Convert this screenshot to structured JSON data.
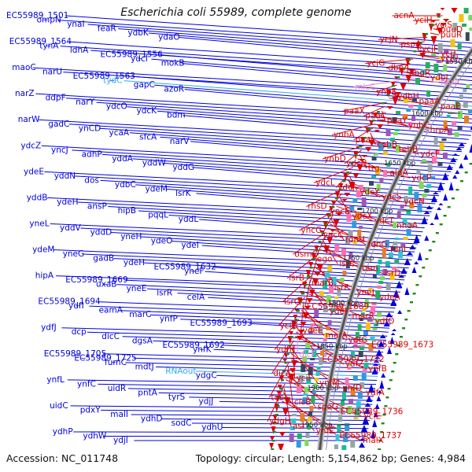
{
  "title": "Escherichia coli 55989, complete genome",
  "footer": {
    "accession": "Accession: NC_011748",
    "summary": "Topology: circular; Length: 5,154,862 bp; Genes: 4,984"
  },
  "colors": {
    "forward_strand": "#0000dd",
    "reverse_strand": "#dd0000",
    "rna_gene": "#33aaee",
    "pseudo_gene": "#ee88cc",
    "backbone": "#555555",
    "tick": "#1e8a1e"
  },
  "position_labels": [
    "1500 kbp",
    "1550 kbp",
    "1600 kbp",
    "1650 kbp",
    "1700 kbp",
    "1750 kbp",
    "1800 kbp",
    "1850 kbp",
    "1900 kbp",
    "1950 kbp"
  ],
  "left_genes": [
    {
      "label": "EC55989_1501",
      "kind": "cds"
    },
    {
      "label": "ompN",
      "kind": "cds"
    },
    {
      "label": "ynaI",
      "kind": "cds"
    },
    {
      "label": "feaR",
      "kind": "cds"
    },
    {
      "label": "ydbK",
      "kind": "cds"
    },
    {
      "label": "ydaO",
      "kind": "cds"
    },
    {
      "label": "EC55989_1564",
      "kind": "cds"
    },
    {
      "label": "tynA",
      "kind": "cds"
    },
    {
      "label": "ldhA",
      "kind": "cds"
    },
    {
      "label": "EC55989_1556",
      "kind": "cds"
    },
    {
      "label": "ydcI",
      "kind": "cds"
    },
    {
      "label": "mokB",
      "kind": "cds"
    },
    {
      "label": "maoC",
      "kind": "cds"
    },
    {
      "label": "narU",
      "kind": "cds"
    },
    {
      "label": "EC55989_1563",
      "kind": "cds"
    },
    {
      "label": "tydC",
      "kind": "rna"
    },
    {
      "label": "gapC",
      "kind": "cds"
    },
    {
      "label": "azoR",
      "kind": "cds"
    },
    {
      "label": "narZ",
      "kind": "cds"
    },
    {
      "label": "ddpF",
      "kind": "cds"
    },
    {
      "label": "narY",
      "kind": "cds"
    },
    {
      "label": "ydcO",
      "kind": "cds"
    },
    {
      "label": "ydcK",
      "kind": "cds"
    },
    {
      "label": "bdm",
      "kind": "cds"
    },
    {
      "label": "narW",
      "kind": "cds"
    },
    {
      "label": "gadC",
      "kind": "cds"
    },
    {
      "label": "ynCD",
      "kind": "cds"
    },
    {
      "label": "ycaA",
      "kind": "cds"
    },
    {
      "label": "sfcA",
      "kind": "cds"
    },
    {
      "label": "narV",
      "kind": "cds"
    },
    {
      "label": "ydcZ",
      "kind": "cds"
    },
    {
      "label": "yncJ",
      "kind": "cds"
    },
    {
      "label": "adhP",
      "kind": "cds"
    },
    {
      "label": "yddA",
      "kind": "cds"
    },
    {
      "label": "yddW",
      "kind": "cds"
    },
    {
      "label": "yddG",
      "kind": "cds"
    },
    {
      "label": "ydeE",
      "kind": "cds"
    },
    {
      "label": "yddN",
      "kind": "cds"
    },
    {
      "label": "dos",
      "kind": "cds"
    },
    {
      "label": "ydbC",
      "kind": "cds"
    },
    {
      "label": "ydeM",
      "kind": "cds"
    },
    {
      "label": "lsrK",
      "kind": "cds"
    },
    {
      "label": "yddB",
      "kind": "cds"
    },
    {
      "label": "ydeH",
      "kind": "cds"
    },
    {
      "label": "ansP",
      "kind": "cds"
    },
    {
      "label": "hipB",
      "kind": "cds"
    },
    {
      "label": "pqqL",
      "kind": "cds"
    },
    {
      "label": "yddL",
      "kind": "cds"
    },
    {
      "label": "yneL",
      "kind": "cds"
    },
    {
      "label": "yddV",
      "kind": "cds"
    },
    {
      "label": "yddD",
      "kind": "cds"
    },
    {
      "label": "yneH",
      "kind": "cds"
    },
    {
      "label": "ydeO",
      "kind": "cds"
    },
    {
      "label": "ydeI",
      "kind": "cds"
    },
    {
      "label": "ydeM",
      "kind": "cds"
    },
    {
      "label": "yneG",
      "kind": "cds"
    },
    {
      "label": "gadB",
      "kind": "cds"
    },
    {
      "label": "ydeH",
      "kind": "cds"
    },
    {
      "label": "EC55989_1632",
      "kind": "cds"
    },
    {
      "label": "yneF",
      "kind": "cds"
    },
    {
      "label": "hipA",
      "kind": "cds"
    },
    {
      "label": "EC55989_1669",
      "kind": "cds"
    },
    {
      "label": "uxaB",
      "kind": "cds"
    },
    {
      "label": "yneE",
      "kind": "cds"
    },
    {
      "label": "lsrR",
      "kind": "cds"
    },
    {
      "label": "celA",
      "kind": "cds"
    },
    {
      "label": "EC55989_1694",
      "kind": "cds"
    },
    {
      "label": "ydfI",
      "kind": "cds"
    },
    {
      "label": "eamA",
      "kind": "cds"
    },
    {
      "label": "marC",
      "kind": "cds"
    },
    {
      "label": "ynfP",
      "kind": "cds"
    },
    {
      "label": "EC55989_1693",
      "kind": "cds"
    },
    {
      "label": "ydfJ",
      "kind": "cds"
    },
    {
      "label": "dcp",
      "kind": "cds"
    },
    {
      "label": "dicC",
      "kind": "cds"
    },
    {
      "label": "dgsA",
      "kind": "cds"
    },
    {
      "label": "EC55989_1692",
      "kind": "cds"
    },
    {
      "label": "ynfK",
      "kind": "cds"
    },
    {
      "label": "EC55989_1705",
      "kind": "cds"
    },
    {
      "label": "EC55989_1725",
      "kind": "cds"
    },
    {
      "label": "fumC",
      "kind": "cds"
    },
    {
      "label": "mdtJ",
      "kind": "cds"
    },
    {
      "label": "RNAout",
      "kind": "rna"
    },
    {
      "label": "ydgC",
      "kind": "cds"
    },
    {
      "label": "ynfL",
      "kind": "cds"
    },
    {
      "label": "ynfC",
      "kind": "cds"
    },
    {
      "label": "uidR",
      "kind": "cds"
    },
    {
      "label": "pntA",
      "kind": "cds"
    },
    {
      "label": "tyrS",
      "kind": "cds"
    },
    {
      "label": "ydjJ",
      "kind": "cds"
    },
    {
      "label": "uidC",
      "kind": "cds"
    },
    {
      "label": "pdxY",
      "kind": "cds"
    },
    {
      "label": "malI",
      "kind": "cds"
    },
    {
      "label": "ydhD",
      "kind": "cds"
    },
    {
      "label": "sodC",
      "kind": "cds"
    },
    {
      "label": "ydhU",
      "kind": "cds"
    },
    {
      "label": "ydhP",
      "kind": "cds"
    },
    {
      "label": "ydhW",
      "kind": "cds"
    },
    {
      "label": "ydjI",
      "kind": "cds"
    }
  ],
  "right_genes": [
    {
      "label": "acnA",
      "kind": "cds"
    },
    {
      "label": "yciH",
      "kind": "cds"
    },
    {
      "label": "yciS",
      "kind": "cds"
    },
    {
      "label": "puuD",
      "kind": "cds"
    },
    {
      "label": "puuR",
      "kind": "cds"
    },
    {
      "label": "ycjN",
      "kind": "cds"
    },
    {
      "label": "pspA",
      "kind": "cds"
    },
    {
      "label": "ycjF",
      "kind": "cds"
    },
    {
      "label": "ycjT",
      "kind": "cds"
    },
    {
      "label": "ycjU",
      "kind": "cds"
    },
    {
      "label": "ycjG",
      "kind": "cds"
    },
    {
      "label": "dbpA",
      "kind": "cds"
    },
    {
      "label": "abgR",
      "kind": "cds"
    },
    {
      "label": "ydbJ",
      "kind": "cds"
    },
    {
      "label": "ftsrA",
      "kind": "pseudo"
    },
    {
      "label": "micC",
      "kind": "pseudo"
    },
    {
      "label": "ynbE",
      "kind": "cds"
    },
    {
      "label": "ydbH",
      "kind": "cds"
    },
    {
      "label": "paaA",
      "kind": "cds"
    },
    {
      "label": "paaB",
      "kind": "cds"
    },
    {
      "label": "paaX",
      "kind": "cds"
    },
    {
      "label": "paaC",
      "kind": "cds"
    },
    {
      "label": "paaY",
      "kind": "cds"
    },
    {
      "label": "ynbC",
      "kind": "cds"
    },
    {
      "label": "hrpA",
      "kind": "cds"
    },
    {
      "label": "ynbA",
      "kind": "cds"
    },
    {
      "label": "paaI",
      "kind": "cds"
    },
    {
      "label": "cybB",
      "kind": "cds"
    },
    {
      "label": "tehB",
      "kind": "cds"
    },
    {
      "label": "ydcF",
      "kind": "cds"
    },
    {
      "label": "ynbD",
      "kind": "cds"
    },
    {
      "label": "ydcH",
      "kind": "cds"
    },
    {
      "label": "trg",
      "kind": "cds"
    },
    {
      "label": "aldA",
      "kind": "cds"
    },
    {
      "label": "ydcP",
      "kind": "cds"
    },
    {
      "label": "ydcL",
      "kind": "cds"
    },
    {
      "label": "ydcJ",
      "kind": "cds"
    },
    {
      "label": "ydcY",
      "kind": "cds"
    },
    {
      "label": "ydcS",
      "kind": "cds"
    },
    {
      "label": "ydcN",
      "kind": "cds"
    },
    {
      "label": "rhsD",
      "kind": "cds"
    },
    {
      "label": "yncE",
      "kind": "cds"
    },
    {
      "label": "ydcX",
      "kind": "cds"
    },
    {
      "label": "ydcT",
      "kind": "cds"
    },
    {
      "label": "nhoA",
      "kind": "cds"
    },
    {
      "label": "yncG",
      "kind": "cds"
    },
    {
      "label": "yncC",
      "kind": "cds"
    },
    {
      "label": "fdnH",
      "kind": "cds"
    },
    {
      "label": "fdnG",
      "kind": "cds"
    },
    {
      "label": "fdnI",
      "kind": "cds"
    },
    {
      "label": "osmC",
      "kind": "cds"
    },
    {
      "label": "ego",
      "kind": "cds"
    },
    {
      "label": "lsrC",
      "kind": "cds"
    },
    {
      "label": "tam",
      "kind": "cds"
    },
    {
      "label": "lsrD",
      "kind": "cds"
    },
    {
      "label": "lsrB",
      "kind": "cds"
    },
    {
      "label": "marB",
      "kind": "cds"
    },
    {
      "label": "lsrF",
      "kind": "cds"
    },
    {
      "label": "yneJ",
      "kind": "cds"
    },
    {
      "label": "ydeA",
      "kind": "cds"
    },
    {
      "label": "lsrG",
      "kind": "cds"
    },
    {
      "label": "EC55989_1689",
      "kind": "cds"
    },
    {
      "label": "ydeI",
      "kind": "cds"
    },
    {
      "label": "marR",
      "kind": "cds"
    },
    {
      "label": "ydfO",
      "kind": "cds"
    },
    {
      "label": "yciG",
      "kind": "cds"
    },
    {
      "label": "ydeE",
      "kind": "cds"
    },
    {
      "label": "marA",
      "kind": "cds"
    },
    {
      "label": "ydfG",
      "kind": "cds"
    },
    {
      "label": "EC55989_1673",
      "kind": "cds"
    },
    {
      "label": "ydfH",
      "kind": "cds"
    },
    {
      "label": "dicF",
      "kind": "pseudo"
    },
    {
      "label": "EC55989_1722",
      "kind": "cds"
    },
    {
      "label": "ydfZ",
      "kind": "cds"
    },
    {
      "label": "ynfB",
      "kind": "cds"
    },
    {
      "label": "dicA",
      "kind": "cds"
    },
    {
      "label": "yciF",
      "kind": "cds"
    },
    {
      "label": "ynfM",
      "kind": "cds"
    },
    {
      "label": "ynfD",
      "kind": "cds"
    },
    {
      "label": "ydfA",
      "kind": "cds"
    },
    {
      "label": "tus",
      "kind": "cds"
    },
    {
      "label": "clcB",
      "kind": "cds"
    },
    {
      "label": "speG",
      "kind": "cds"
    },
    {
      "label": "EC55989_1736",
      "kind": "cds"
    },
    {
      "label": "yciE",
      "kind": "cds"
    },
    {
      "label": "ydgH",
      "kind": "cds"
    },
    {
      "label": "asr",
      "kind": "cds"
    },
    {
      "label": "ynfE",
      "kind": "cds"
    },
    {
      "label": "EC55989_1737",
      "kind": "cds"
    },
    {
      "label": "malX",
      "kind": "cds"
    }
  ]
}
